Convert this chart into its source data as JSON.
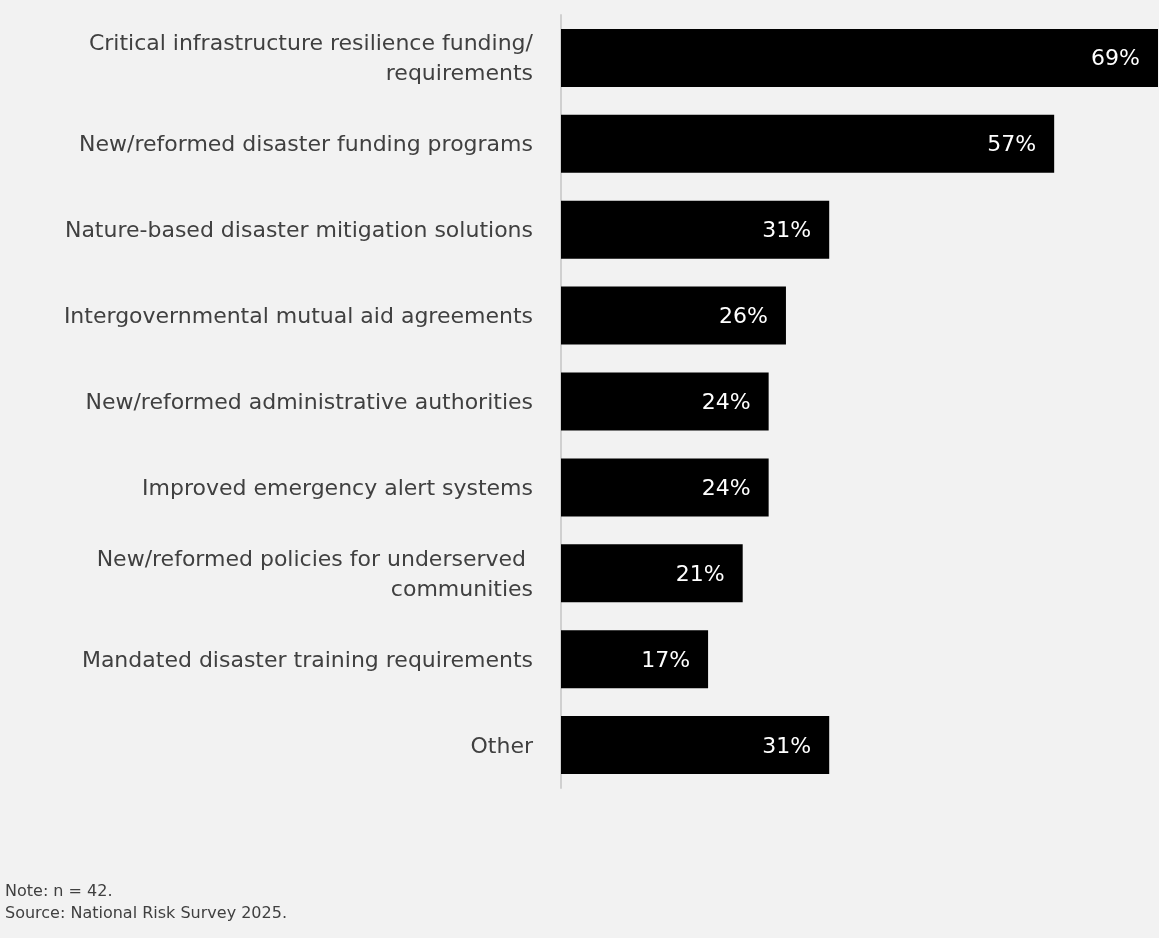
{
  "chart_data": {
    "type": "bar",
    "orientation": "horizontal",
    "categories": [
      "Critical infrastructure resilience funding/requirements",
      "New/reformed disaster funding programs",
      "Nature-based disaster mitigation solutions",
      "Intergovernmental mutual aid agreements",
      "New/reformed administrative authorities",
      "Improved emergency alert systems",
      "New/reformed policies for underserved communities",
      "Mandated disaster training requirements",
      "Other"
    ],
    "values": [
      69,
      57,
      31,
      26,
      24,
      24,
      21,
      17,
      31
    ],
    "value_labels": [
      "69%",
      "57%",
      "31%",
      "26%",
      "24%",
      "24%",
      "21%",
      "17%",
      "31%"
    ],
    "color": "#000000",
    "annotations": [
      "Note: n = 42.",
      "Source: National Risk Survey 2025."
    ]
  }
}
